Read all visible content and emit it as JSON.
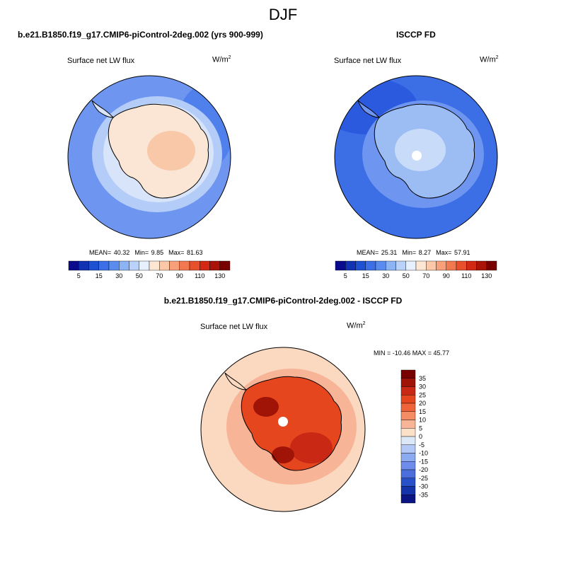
{
  "figure": {
    "title": "DJF"
  },
  "panels": [
    {
      "title": "b.e21.B1850.f19_g17.CMIP6-piControl-2deg.002 (yrs 900-999)",
      "variable": "Surface net LW flux",
      "units_base": "W/m",
      "units_exp": "2",
      "stats": {
        "mean_label": "MEAN=",
        "mean": "40.32",
        "min_label": "Min=",
        "min": "9.85",
        "max_label": "Max=",
        "max": "81.63"
      }
    },
    {
      "title": "ISCCP FD",
      "variable": "Surface net LW flux",
      "units_base": "W/m",
      "units_exp": "2",
      "stats": {
        "mean_label": "MEAN=",
        "mean": "25.31",
        "min_label": "Min=",
        "min": "8.27",
        "max_label": "Max=",
        "max": "57.91"
      }
    },
    {
      "title": "b.e21.B1850.f19_g17.CMIP6-piControl-2deg.002 - ISCCP FD",
      "variable": "Surface net LW flux",
      "units_base": "W/m",
      "units_exp": "2",
      "stats_text": "MIN = -10.46 MAX =  45.77"
    }
  ],
  "colorbar_abs": {
    "colors": [
      "#0a0a8c",
      "#1232b4",
      "#1e50d2",
      "#3c6ee6",
      "#5a8cf0",
      "#8cb4f5",
      "#b9d2fa",
      "#e6f0ff",
      "#fde6d2",
      "#fcc8a8",
      "#f8a07a",
      "#f27850",
      "#e8502c",
      "#d22814",
      "#aa1408",
      "#780000"
    ],
    "labels": [
      "5",
      "15",
      "30",
      "50",
      "70",
      "90",
      "110",
      "130"
    ]
  },
  "colorbar_diff": {
    "colors": [
      "#780000",
      "#a01408",
      "#c82814",
      "#e6461e",
      "#f0643c",
      "#f58c64",
      "#f8b496",
      "#fde0c8",
      "#dce8f8",
      "#b4c8f5",
      "#8caaf0",
      "#6e8ceb",
      "#4b6edc",
      "#2850c8",
      "#1432aa",
      "#0a1482"
    ],
    "labels": [
      "35",
      "30",
      "25",
      "20",
      "15",
      "10",
      "5",
      "0",
      "-5",
      "-10",
      "-15",
      "-20",
      "-25",
      "-30",
      "-35"
    ]
  },
  "map_colors": {
    "model_ocean": "#6e96f0",
    "model_ocean_dark": "#5080ec",
    "model_band": "#b4ccf8",
    "model_coast": "#d8e4fa",
    "model_ice": "#fbe6d6",
    "model_ice_warm": "#f8c8a8",
    "obs_ocean": "#3c6ee6",
    "obs_ocean_dark": "#2c5ade",
    "obs_band": "#6e96f0",
    "obs_ice": "#9cbcf4",
    "obs_ice_light": "#c8dcfa",
    "diff_ocean": "#fbd8c0",
    "diff_ocean_mid": "#f8b496",
    "diff_ice": "#e6461e",
    "diff_ice_dark": "#c82814",
    "diff_ice_core": "#a01408",
    "hole": "#ffffff",
    "coast_line": "#000000"
  }
}
